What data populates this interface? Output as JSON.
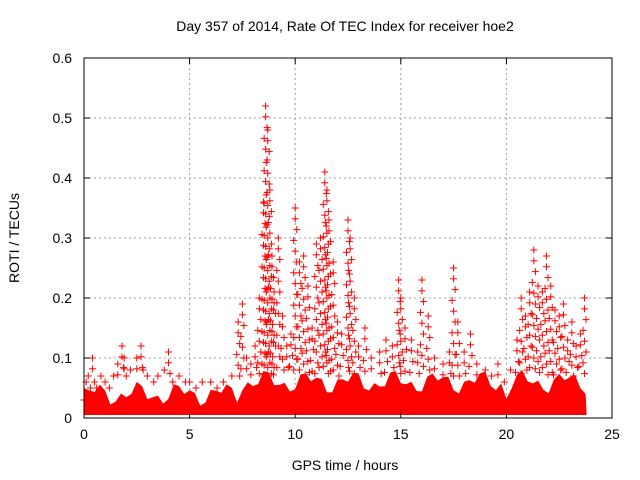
{
  "chart_data": {
    "type": "scatter",
    "title": "Day 357 of 2014, Rate Of TEC Index for receiver hoe2",
    "xlabel": "GPS time / hours",
    "ylabel": "ROTI / TECUs",
    "xlim": [
      0,
      25
    ],
    "ylim": [
      0,
      0.6
    ],
    "xticks": [
      0,
      5,
      10,
      15,
      20,
      25
    ],
    "yticks": [
      0,
      0.1,
      0.2,
      0.3,
      0.4,
      0.5,
      0.6
    ],
    "xtick_labels": [
      "0",
      "5",
      "10",
      "15",
      "20",
      "25"
    ],
    "ytick_labels": [
      "0",
      "0.1",
      "0.2",
      "0.3",
      "0.4",
      "0.5",
      "0.6"
    ],
    "grid": true,
    "marker": "+",
    "color": "#ff0000",
    "series": [
      {
        "x": [
          0.0,
          0.1,
          0.2,
          0.3,
          0.4,
          0.5,
          0.6,
          0.8,
          1.0,
          1.2,
          1.4,
          1.6,
          1.8,
          1.9,
          2.0,
          2.2,
          2.5,
          2.7,
          2.8,
          3.0,
          3.3,
          3.5,
          3.8,
          4.0,
          4.2,
          4.5,
          4.8,
          5.0,
          5.3,
          5.6,
          6.0,
          6.3,
          6.6,
          7.0,
          7.3,
          7.5,
          7.7,
          7.9,
          8.1,
          8.3,
          8.5,
          8.6,
          8.7,
          8.8,
          8.9,
          9.0,
          9.2,
          9.4,
          9.6,
          9.8,
          10.0,
          10.2,
          10.4,
          10.6,
          10.8,
          11.0,
          11.2,
          11.4,
          11.5,
          11.6,
          11.8,
          12.0,
          12.2,
          12.5,
          12.6,
          12.8,
          13.0,
          13.3,
          13.6,
          14.0,
          14.3,
          14.6,
          14.9,
          15.0,
          15.2,
          15.5,
          15.8,
          16.0,
          16.3,
          16.6,
          17.0,
          17.3,
          17.5,
          17.7,
          18.0,
          18.3,
          18.6,
          19.0,
          19.3,
          19.6,
          19.9,
          20.2,
          20.5,
          20.7,
          20.9,
          21.1,
          21.3,
          21.5,
          21.7,
          21.9,
          22.1,
          22.3,
          22.5,
          22.7,
          22.9,
          23.1,
          23.3,
          23.5,
          23.7
        ],
        "y": [
          0.03,
          0.06,
          0.07,
          0.05,
          0.1,
          0.06,
          0.05,
          0.07,
          0.06,
          0.05,
          0.07,
          0.09,
          0.12,
          0.1,
          0.07,
          0.08,
          0.1,
          0.12,
          0.08,
          0.07,
          0.06,
          0.07,
          0.08,
          0.11,
          0.06,
          0.07,
          0.06,
          0.06,
          0.05,
          0.06,
          0.06,
          0.05,
          0.06,
          0.07,
          0.16,
          0.19,
          0.1,
          0.09,
          0.12,
          0.2,
          0.36,
          0.52,
          0.48,
          0.38,
          0.27,
          0.21,
          0.3,
          0.17,
          0.12,
          0.14,
          0.35,
          0.26,
          0.27,
          0.22,
          0.15,
          0.29,
          0.3,
          0.41,
          0.38,
          0.33,
          0.26,
          0.16,
          0.14,
          0.33,
          0.3,
          0.2,
          0.12,
          0.15,
          0.1,
          0.11,
          0.13,
          0.12,
          0.23,
          0.2,
          0.15,
          0.13,
          0.11,
          0.23,
          0.17,
          0.1,
          0.09,
          0.11,
          0.25,
          0.16,
          0.11,
          0.14,
          0.09,
          0.08,
          0.07,
          0.09,
          0.06,
          0.08,
          0.13,
          0.2,
          0.17,
          0.21,
          0.28,
          0.22,
          0.21,
          0.27,
          0.22,
          0.18,
          0.17,
          0.19,
          0.13,
          0.16,
          0.12,
          0.14,
          0.2
        ]
      }
    ]
  }
}
